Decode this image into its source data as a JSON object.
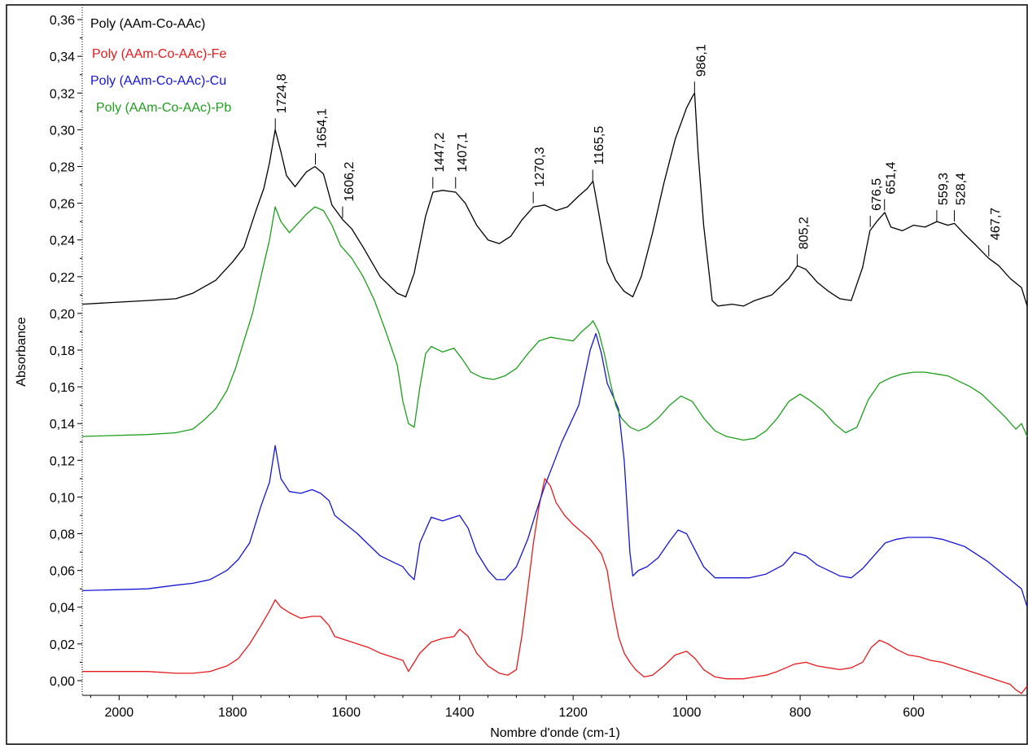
{
  "chart_data": {
    "type": "line",
    "xlabel": "Nombre d'onde (cm-1)",
    "ylabel": "Absorbance",
    "xlim": [
      2065,
      400
    ],
    "ylim": [
      -0.008,
      0.368
    ],
    "x_reversed": true,
    "x_ticks": [
      2000,
      1800,
      1600,
      1400,
      1200,
      1000,
      800,
      600
    ],
    "x_tick_labels": [
      "2000",
      "1800",
      "1600",
      "1400",
      "1200",
      "1000",
      "800",
      "600"
    ],
    "y_ticks": [
      0.0,
      0.02,
      0.04,
      0.06,
      0.08,
      0.1,
      0.12,
      0.14,
      0.16,
      0.18,
      0.2,
      0.22,
      0.24,
      0.26,
      0.28,
      0.3,
      0.32,
      0.34,
      0.36
    ],
    "y_tick_labels": [
      "0,00",
      "0,02",
      "0,04",
      "0,06",
      "0,08",
      "0,10",
      "0,12",
      "0,14",
      "0,16",
      "0,18",
      "0,20",
      "0,22",
      "0,24",
      "0,26",
      "0,28",
      "0,30",
      "0,32",
      "0,34",
      "0,36"
    ],
    "grid": false,
    "legend_position": "top-left",
    "series": [
      {
        "name": "Poly (AAm-Co-AAc)",
        "color": "#000000",
        "x": [
          2065,
          1950,
          1900,
          1870,
          1830,
          1800,
          1780,
          1760,
          1745,
          1735,
          1725,
          1715,
          1705,
          1690,
          1670,
          1655,
          1640,
          1625,
          1606,
          1590,
          1570,
          1540,
          1510,
          1495,
          1480,
          1460,
          1447,
          1430,
          1407,
          1390,
          1370,
          1350,
          1330,
          1310,
          1290,
          1270,
          1250,
          1230,
          1210,
          1190,
          1175,
          1165,
          1155,
          1140,
          1125,
          1110,
          1095,
          1080,
          1060,
          1040,
          1020,
          1000,
          990,
          986,
          980,
          970,
          955,
          945,
          920,
          900,
          880,
          850,
          820,
          805,
          790,
          770,
          750,
          730,
          710,
          690,
          677,
          665,
          651,
          640,
          620,
          600,
          580,
          559,
          540,
          528,
          510,
          490,
          468,
          450,
          430,
          410,
          400
        ],
        "y": [
          0.205,
          0.207,
          0.208,
          0.211,
          0.218,
          0.228,
          0.236,
          0.255,
          0.268,
          0.282,
          0.3,
          0.288,
          0.275,
          0.269,
          0.277,
          0.28,
          0.276,
          0.259,
          0.251,
          0.246,
          0.236,
          0.22,
          0.211,
          0.209,
          0.222,
          0.253,
          0.266,
          0.267,
          0.266,
          0.26,
          0.248,
          0.24,
          0.238,
          0.242,
          0.251,
          0.258,
          0.259,
          0.256,
          0.258,
          0.264,
          0.268,
          0.272,
          0.255,
          0.228,
          0.218,
          0.212,
          0.209,
          0.22,
          0.244,
          0.271,
          0.295,
          0.312,
          0.318,
          0.32,
          0.288,
          0.248,
          0.207,
          0.204,
          0.205,
          0.204,
          0.207,
          0.21,
          0.219,
          0.226,
          0.224,
          0.217,
          0.212,
          0.208,
          0.207,
          0.225,
          0.245,
          0.25,
          0.255,
          0.247,
          0.245,
          0.248,
          0.247,
          0.25,
          0.248,
          0.249,
          0.243,
          0.237,
          0.23,
          0.226,
          0.219,
          0.214,
          0.204
        ]
      },
      {
        "name": "Poly (AAm-Co-AAc)-Fe",
        "color": "#e41a1c",
        "x": [
          2065,
          1950,
          1900,
          1870,
          1840,
          1810,
          1790,
          1770,
          1750,
          1735,
          1725,
          1715,
          1700,
          1680,
          1660,
          1645,
          1630,
          1620,
          1600,
          1580,
          1560,
          1540,
          1520,
          1500,
          1490,
          1470,
          1450,
          1430,
          1410,
          1400,
          1385,
          1370,
          1350,
          1330,
          1315,
          1300,
          1290,
          1280,
          1270,
          1260,
          1250,
          1240,
          1230,
          1215,
          1200,
          1185,
          1170,
          1160,
          1150,
          1140,
          1130,
          1120,
          1110,
          1100,
          1090,
          1075,
          1060,
          1040,
          1020,
          1000,
          985,
          970,
          950,
          930,
          900,
          880,
          860,
          840,
          810,
          790,
          770,
          750,
          730,
          710,
          690,
          675,
          660,
          645,
          630,
          610,
          590,
          570,
          550,
          530,
          510,
          490,
          470,
          450,
          430,
          420,
          410,
          400
        ],
        "y": [
          0.005,
          0.005,
          0.004,
          0.004,
          0.005,
          0.008,
          0.012,
          0.02,
          0.03,
          0.038,
          0.044,
          0.04,
          0.037,
          0.034,
          0.035,
          0.035,
          0.03,
          0.024,
          0.022,
          0.02,
          0.018,
          0.015,
          0.013,
          0.011,
          0.005,
          0.015,
          0.021,
          0.023,
          0.024,
          0.028,
          0.024,
          0.015,
          0.008,
          0.004,
          0.003,
          0.006,
          0.025,
          0.05,
          0.075,
          0.095,
          0.11,
          0.106,
          0.097,
          0.09,
          0.085,
          0.081,
          0.077,
          0.073,
          0.069,
          0.06,
          0.04,
          0.024,
          0.015,
          0.01,
          0.006,
          0.002,
          0.003,
          0.008,
          0.014,
          0.016,
          0.012,
          0.006,
          0.002,
          0.001,
          0.001,
          0.002,
          0.003,
          0.005,
          0.009,
          0.01,
          0.008,
          0.007,
          0.006,
          0.007,
          0.01,
          0.018,
          0.022,
          0.02,
          0.017,
          0.014,
          0.013,
          0.011,
          0.01,
          0.008,
          0.006,
          0.004,
          0.002,
          0.0,
          -0.002,
          -0.005,
          -0.007,
          -0.003
        ]
      },
      {
        "name": "Poly (AAm-Co-AAc)-Cu",
        "color": "#1515d4",
        "x": [
          2065,
          1950,
          1900,
          1870,
          1840,
          1810,
          1790,
          1770,
          1750,
          1735,
          1725,
          1715,
          1700,
          1680,
          1660,
          1645,
          1630,
          1620,
          1600,
          1580,
          1560,
          1540,
          1520,
          1500,
          1490,
          1480,
          1470,
          1450,
          1430,
          1410,
          1400,
          1385,
          1370,
          1350,
          1335,
          1320,
          1300,
          1280,
          1265,
          1250,
          1235,
          1220,
          1205,
          1190,
          1180,
          1170,
          1160,
          1150,
          1140,
          1130,
          1120,
          1110,
          1100,
          1095,
          1085,
          1070,
          1050,
          1030,
          1015,
          1000,
          985,
          970,
          950,
          920,
          890,
          860,
          830,
          810,
          790,
          770,
          750,
          730,
          710,
          690,
          670,
          650,
          630,
          610,
          590,
          570,
          550,
          530,
          510,
          490,
          470,
          450,
          430,
          410,
          400
        ],
        "y": [
          0.049,
          0.05,
          0.052,
          0.053,
          0.055,
          0.06,
          0.066,
          0.075,
          0.095,
          0.108,
          0.128,
          0.11,
          0.103,
          0.102,
          0.104,
          0.102,
          0.098,
          0.09,
          0.085,
          0.08,
          0.074,
          0.068,
          0.065,
          0.062,
          0.058,
          0.055,
          0.075,
          0.089,
          0.087,
          0.089,
          0.09,
          0.083,
          0.07,
          0.06,
          0.055,
          0.055,
          0.062,
          0.077,
          0.092,
          0.106,
          0.118,
          0.13,
          0.14,
          0.15,
          0.165,
          0.18,
          0.189,
          0.178,
          0.162,
          0.155,
          0.148,
          0.12,
          0.07,
          0.057,
          0.06,
          0.062,
          0.067,
          0.076,
          0.082,
          0.08,
          0.071,
          0.062,
          0.056,
          0.056,
          0.056,
          0.058,
          0.063,
          0.07,
          0.068,
          0.063,
          0.06,
          0.057,
          0.056,
          0.061,
          0.068,
          0.075,
          0.077,
          0.078,
          0.078,
          0.078,
          0.077,
          0.075,
          0.073,
          0.069,
          0.065,
          0.06,
          0.055,
          0.05,
          0.04
        ]
      },
      {
        "name": "Poly (AAm-Co-AAc)-Pb",
        "color": "#1d9e1d",
        "x": [
          2065,
          1950,
          1900,
          1870,
          1850,
          1830,
          1810,
          1795,
          1780,
          1765,
          1750,
          1735,
          1725,
          1715,
          1700,
          1685,
          1670,
          1655,
          1640,
          1625,
          1610,
          1590,
          1570,
          1550,
          1530,
          1510,
          1500,
          1490,
          1480,
          1470,
          1460,
          1450,
          1430,
          1410,
          1395,
          1380,
          1360,
          1340,
          1320,
          1300,
          1280,
          1260,
          1240,
          1220,
          1200,
          1185,
          1170,
          1165,
          1155,
          1145,
          1135,
          1125,
          1115,
          1100,
          1085,
          1070,
          1050,
          1030,
          1010,
          990,
          970,
          950,
          930,
          900,
          880,
          860,
          840,
          820,
          800,
          780,
          760,
          740,
          720,
          700,
          680,
          660,
          640,
          620,
          600,
          580,
          560,
          540,
          520,
          500,
          480,
          460,
          440,
          420,
          410,
          400
        ],
        "y": [
          0.133,
          0.134,
          0.135,
          0.137,
          0.142,
          0.148,
          0.158,
          0.17,
          0.185,
          0.2,
          0.22,
          0.24,
          0.258,
          0.25,
          0.244,
          0.249,
          0.254,
          0.258,
          0.256,
          0.248,
          0.237,
          0.23,
          0.22,
          0.207,
          0.19,
          0.172,
          0.152,
          0.14,
          0.138,
          0.16,
          0.178,
          0.182,
          0.179,
          0.181,
          0.175,
          0.168,
          0.165,
          0.164,
          0.166,
          0.17,
          0.178,
          0.185,
          0.187,
          0.186,
          0.185,
          0.19,
          0.194,
          0.196,
          0.19,
          0.178,
          0.163,
          0.15,
          0.143,
          0.138,
          0.136,
          0.138,
          0.143,
          0.15,
          0.155,
          0.152,
          0.143,
          0.136,
          0.133,
          0.131,
          0.132,
          0.136,
          0.143,
          0.152,
          0.156,
          0.152,
          0.147,
          0.14,
          0.135,
          0.138,
          0.153,
          0.162,
          0.165,
          0.167,
          0.168,
          0.168,
          0.167,
          0.166,
          0.163,
          0.16,
          0.156,
          0.15,
          0.144,
          0.137,
          0.14,
          0.133
        ]
      }
    ],
    "annotations": [
      {
        "text": "1724,8",
        "x": 1724.8,
        "y": 0.3
      },
      {
        "text": "1654,1",
        "x": 1654.1,
        "y": 0.281
      },
      {
        "text": "1606,2",
        "x": 1606.2,
        "y": 0.252
      },
      {
        "text": "1447,2",
        "x": 1447.2,
        "y": 0.268
      },
      {
        "text": "1407,1",
        "x": 1407.1,
        "y": 0.268
      },
      {
        "text": "1270,3",
        "x": 1270.3,
        "y": 0.26
      },
      {
        "text": "1165,5",
        "x": 1165.5,
        "y": 0.272
      },
      {
        "text": "986,1",
        "x": 986.1,
        "y": 0.32
      },
      {
        "text": "805,2",
        "x": 805.2,
        "y": 0.226
      },
      {
        "text": "676,5",
        "x": 676.5,
        "y": 0.247
      },
      {
        "text": "651,4",
        "x": 651.4,
        "y": 0.256
      },
      {
        "text": "559,3",
        "x": 559.3,
        "y": 0.25
      },
      {
        "text": "528,4",
        "x": 528.4,
        "y": 0.25
      },
      {
        "text": "467,7",
        "x": 467.7,
        "y": 0.231
      }
    ]
  }
}
